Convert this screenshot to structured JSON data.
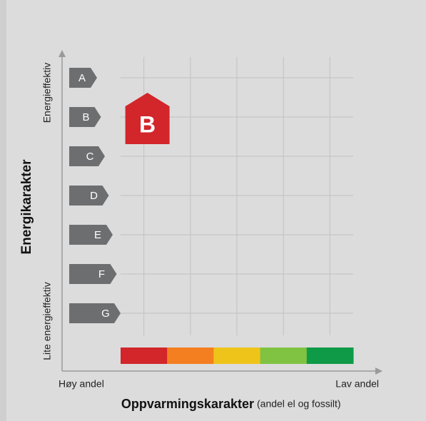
{
  "chart_data": {
    "type": "energy-label",
    "y_label": "Energikarakter",
    "y_top_label": "Energieffektiv",
    "y_bottom_label": "Lite energieffektiv",
    "x_label": "Oppvarmingskarakter",
    "x_label_note": "(andel el og fossilt)",
    "x_left_label": "Høy andel",
    "x_right_label": "Lav andel",
    "energy_classes": [
      "A",
      "B",
      "C",
      "D",
      "E",
      "F",
      "G"
    ],
    "class_color": "#6d6e70",
    "heating_scale": [
      "#d2262b",
      "#f47f20",
      "#efc41a",
      "#80c342",
      "#0f9a48"
    ],
    "marker": {
      "label": "B",
      "color": "#d2262b"
    },
    "grid": true
  }
}
